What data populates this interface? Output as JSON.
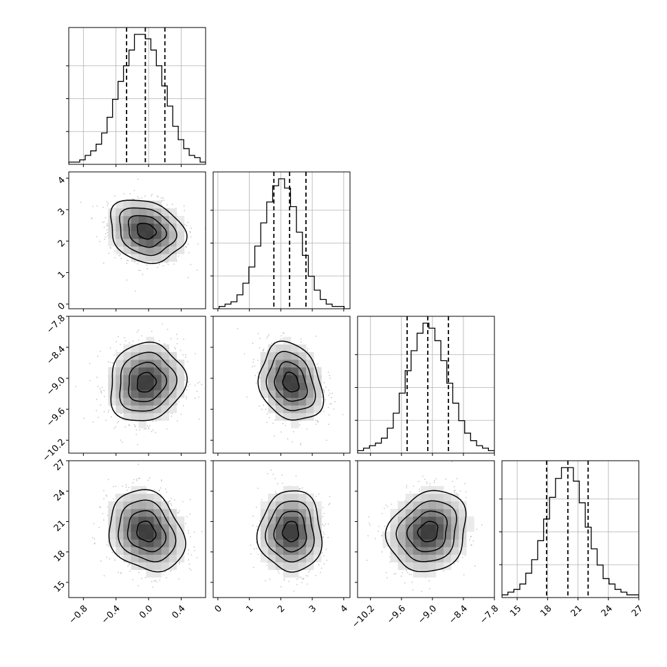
{
  "chart_data": {
    "type": "corner",
    "parameters": [
      {
        "ticks": [
          "−0.8",
          "−0.4",
          "0.0",
          "0.4"
        ],
        "tick_values": [
          -0.8,
          -0.4,
          0.0,
          0.4
        ],
        "range": [
          -0.98,
          0.7
        ],
        "quantiles": [
          -0.27,
          -0.04,
          0.2
        ],
        "hist": [
          1,
          1,
          2,
          4,
          6,
          9,
          14,
          21,
          29,
          37,
          44,
          51,
          58,
          58,
          56,
          51,
          44,
          35,
          26,
          17,
          11,
          7,
          4,
          3,
          1
        ]
      },
      {
        "ticks": [
          "0",
          "1",
          "2",
          "3",
          "4"
        ],
        "tick_values": [
          0,
          1,
          2,
          3,
          4
        ],
        "range": [
          -0.15,
          4.2
        ],
        "quantiles": [
          1.78,
          2.28,
          2.8
        ],
        "hist": [
          0,
          1,
          2,
          3,
          6,
          11,
          18,
          27,
          37,
          46,
          53,
          56,
          52,
          44,
          33,
          23,
          14,
          8,
          4,
          2,
          1,
          1,
          0
        ]
      },
      {
        "ticks": [
          "−10.2",
          "−9.6",
          "−9.0",
          "−8.4",
          "−7.8"
        ],
        "tick_values": [
          -10.2,
          -9.6,
          -9.0,
          -8.4,
          -7.8
        ],
        "range": [
          -10.45,
          -7.8
        ],
        "quantiles": [
          -9.49,
          -9.09,
          -8.69
        ],
        "hist": [
          1,
          2,
          3,
          4,
          6,
          10,
          16,
          24,
          33,
          41,
          48,
          52,
          50,
          45,
          37,
          28,
          20,
          13,
          8,
          5,
          3,
          2,
          1
        ]
      },
      {
        "ticks": [
          "15",
          "18",
          "21",
          "24",
          "27"
        ],
        "tick_values": [
          15,
          18,
          21,
          24,
          27
        ],
        "range": [
          13.5,
          27
        ],
        "quantiles": [
          17.9,
          20.0,
          22.0
        ],
        "hist": [
          1,
          2,
          3,
          5,
          9,
          14,
          21,
          29,
          37,
          44,
          48,
          48,
          43,
          35,
          26,
          18,
          12,
          7,
          5,
          3,
          2,
          1,
          1
        ]
      }
    ],
    "y_axis_ticks": [
      {
        "row": 1,
        "ticks": [
          "0",
          "1",
          "2",
          "3",
          "4"
        ],
        "tick_values": [
          0,
          1,
          2,
          3,
          4
        ]
      },
      {
        "row": 2,
        "ticks": [
          "−10.2",
          "−9.6",
          "−9.0",
          "−8.4",
          "−7.8"
        ],
        "tick_values": [
          -10.2,
          -9.6,
          -9.0,
          -8.4,
          -7.8
        ]
      },
      {
        "row": 3,
        "ticks": [
          "15",
          "18",
          "21",
          "24",
          "27"
        ],
        "tick_values": [
          15,
          18,
          21,
          24,
          27
        ]
      }
    ],
    "means": [
      -0.03,
      2.32,
      -9.08,
      20.0
    ],
    "sds": [
      0.23,
      0.5,
      0.38,
      2.0
    ],
    "correlations": [
      [
        1,
        -0.2,
        0.1,
        -0.2
      ],
      [
        -0.2,
        1,
        -0.2,
        0.0
      ],
      [
        0.1,
        -0.2,
        1,
        0.15
      ],
      [
        -0.2,
        0.0,
        0.15,
        1
      ]
    ],
    "contour_levels_sigma": [
      0.5,
      1.0,
      1.5,
      2.0
    ],
    "grid": true,
    "colors": {
      "line": "#000000",
      "grid": "#b0b0b0",
      "scatter": "#9a9a9a"
    },
    "title": "",
    "xlabel": "",
    "ylabel": ""
  }
}
